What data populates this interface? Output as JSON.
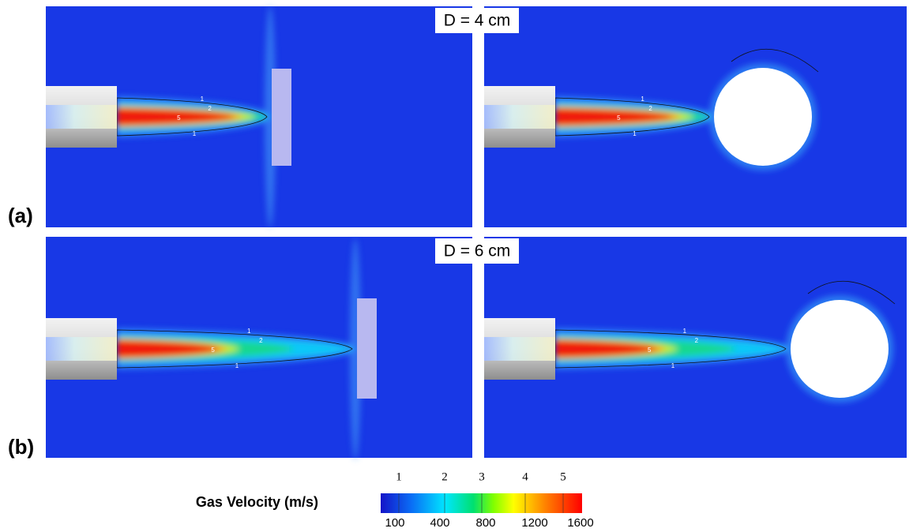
{
  "figure": {
    "rows": [
      {
        "label": "(a)",
        "title": "D = 4 cm",
        "panels": [
          {
            "contour_labels": [
              "1",
              "2",
              "5",
              "1"
            ]
          },
          {
            "contour_labels": [
              "1",
              "2",
              "5",
              "1"
            ]
          }
        ]
      },
      {
        "label": "(b)",
        "title": "D = 6 cm",
        "panels": [
          {
            "contour_labels": [
              "1",
              "2",
              "5",
              "1"
            ]
          },
          {
            "contour_labels": [
              "1",
              "2",
              "5",
              "1"
            ]
          }
        ]
      }
    ],
    "colorbar": {
      "title": "Gas Velocity (m/s)",
      "contour_levels": [
        "1",
        "2",
        "3",
        "4",
        "5"
      ],
      "ticks": [
        100,
        400,
        800,
        1200,
        1600
      ]
    }
  }
}
